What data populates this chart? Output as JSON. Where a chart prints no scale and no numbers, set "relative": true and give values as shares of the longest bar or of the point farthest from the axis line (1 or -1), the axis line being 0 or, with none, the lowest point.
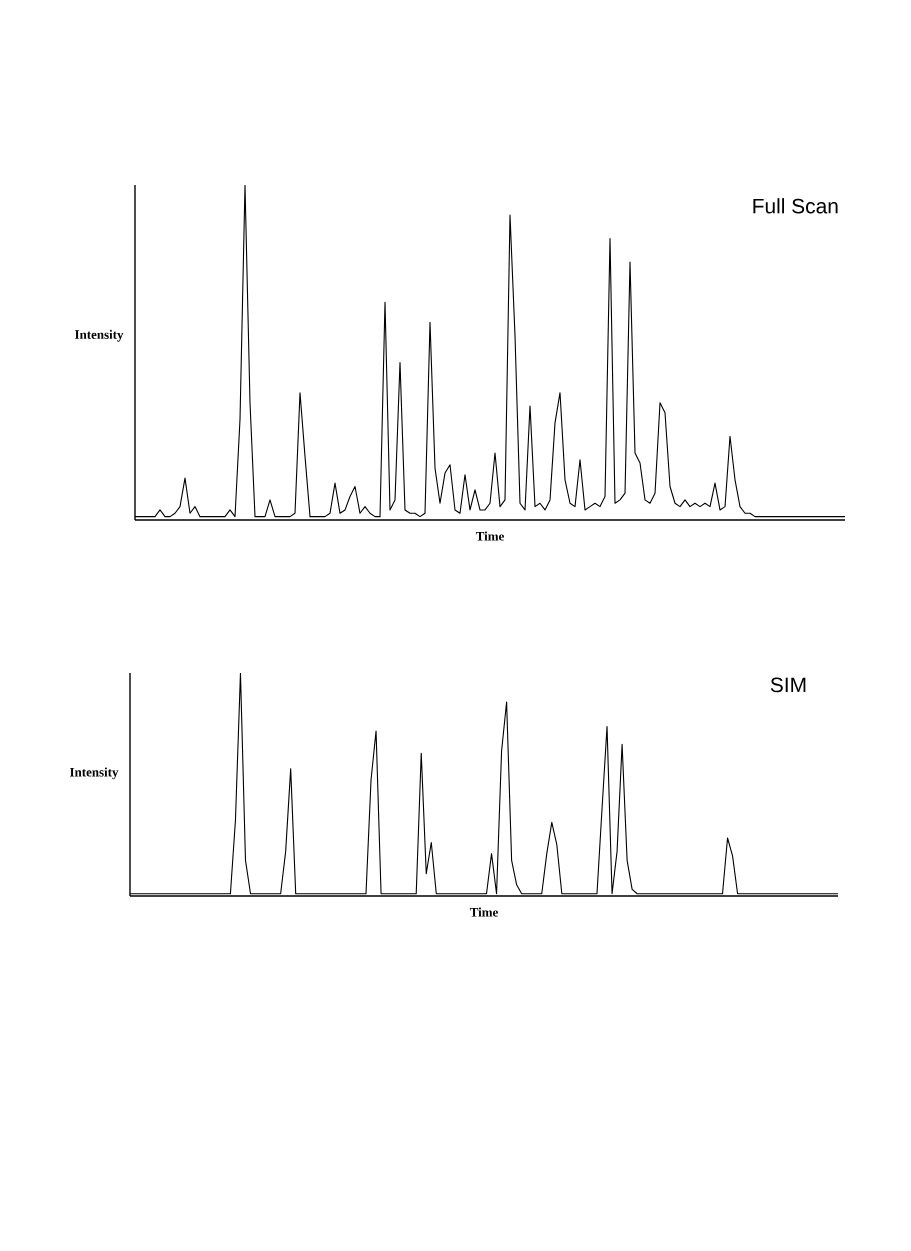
{
  "chart_data": [
    {
      "type": "line",
      "title": "Full Scan",
      "xlabel": "Time",
      "ylabel": "Intensity",
      "relative": true,
      "marker": "none",
      "line_style": "solid",
      "categories": [
        null,
        null,
        null,
        null,
        null,
        null,
        null,
        null,
        null,
        null,
        null,
        null,
        null,
        null,
        null,
        null,
        null,
        null,
        null,
        null,
        null,
        null,
        null,
        null,
        null,
        null,
        null,
        null,
        null,
        null,
        null,
        null,
        null,
        null,
        null,
        null,
        null,
        null,
        null,
        null,
        null,
        null,
        null,
        null,
        null,
        null,
        null,
        null,
        null,
        null,
        null,
        null,
        null,
        null,
        null,
        null,
        null,
        null,
        null,
        null,
        null,
        null,
        null,
        null,
        null,
        null,
        null,
        null,
        null,
        null,
        null,
        null,
        null,
        null,
        null,
        null,
        null,
        null,
        null,
        null,
        null,
        null,
        null,
        null,
        null,
        null,
        null,
        null,
        null,
        null,
        null,
        null,
        null,
        null,
        null,
        null,
        null,
        null,
        null,
        null,
        null,
        null,
        null,
        null,
        null,
        null,
        null,
        null,
        null,
        null,
        null,
        null,
        null,
        null,
        null,
        null,
        null,
        null,
        null,
        null,
        null,
        null,
        null,
        null,
        null,
        null,
        null,
        null,
        null,
        null,
        null,
        null,
        null,
        null,
        null,
        null,
        null,
        null,
        null,
        null,
        null,
        null,
        null
      ],
      "series": [
        {
          "color": "#000000",
          "values": [
            0.01,
            0.01,
            0.01,
            0.01,
            0.01,
            0.03,
            0.01,
            0.01,
            0.02,
            0.04,
            0.125,
            0.02,
            0.04,
            0.01,
            0.01,
            0.01,
            0.01,
            0.01,
            0.01,
            0.03,
            0.01,
            0.3,
            1.0,
            0.35,
            0.01,
            0.01,
            0.01,
            0.06,
            0.01,
            0.01,
            0.01,
            0.01,
            0.02,
            0.38,
            0.19,
            0.01,
            0.01,
            0.01,
            0.01,
            0.02,
            0.11,
            0.02,
            0.03,
            0.07,
            0.1,
            0.02,
            0.04,
            0.02,
            0.01,
            0.01,
            0.65,
            0.03,
            0.06,
            0.47,
            0.03,
            0.02,
            0.02,
            0.01,
            0.02,
            0.59,
            0.155,
            0.05,
            0.14,
            0.165,
            0.03,
            0.02,
            0.135,
            0.03,
            0.09,
            0.03,
            0.03,
            0.05,
            0.2,
            0.04,
            0.06,
            0.91,
            0.55,
            0.05,
            0.03,
            0.34,
            0.04,
            0.05,
            0.03,
            0.06,
            0.29,
            0.38,
            0.12,
            0.05,
            0.04,
            0.18,
            0.03,
            0.04,
            0.05,
            0.04,
            0.07,
            0.84,
            0.05,
            0.06,
            0.08,
            0.77,
            0.2,
            0.17,
            0.06,
            0.05,
            0.08,
            0.35,
            0.32,
            0.1,
            0.05,
            0.04,
            0.06,
            0.04,
            0.05,
            0.04,
            0.05,
            0.04,
            0.11,
            0.03,
            0.04,
            0.25,
            0.12,
            0.04,
            0.02,
            0.02,
            0.01,
            0.01,
            0.01,
            0.01,
            0.01,
            0.01,
            0.01,
            0.01,
            0.01,
            0.01,
            0.01,
            0.01,
            0.01,
            0.01,
            0.01,
            0.01,
            0.01,
            0.01,
            0.01
          ]
        }
      ]
    },
    {
      "type": "line",
      "title": "SIM",
      "xlabel": "Time",
      "ylabel": "Intensity",
      "relative": true,
      "marker": "none",
      "line_style": "solid",
      "categories": [
        null,
        null,
        null,
        null,
        null,
        null,
        null,
        null,
        null,
        null,
        null,
        null,
        null,
        null,
        null,
        null,
        null,
        null,
        null,
        null,
        null,
        null,
        null,
        null,
        null,
        null,
        null,
        null,
        null,
        null,
        null,
        null,
        null,
        null,
        null,
        null,
        null,
        null,
        null,
        null,
        null,
        null,
        null,
        null,
        null,
        null,
        null,
        null,
        null,
        null,
        null,
        null,
        null,
        null,
        null,
        null,
        null,
        null,
        null,
        null,
        null,
        null,
        null,
        null,
        null,
        null,
        null,
        null,
        null,
        null,
        null,
        null,
        null,
        null,
        null,
        null,
        null,
        null,
        null,
        null,
        null,
        null,
        null,
        null,
        null,
        null,
        null,
        null,
        null,
        null,
        null,
        null,
        null,
        null,
        null,
        null,
        null,
        null,
        null,
        null,
        null,
        null,
        null,
        null,
        null,
        null,
        null,
        null,
        null,
        null,
        null,
        null,
        null,
        null,
        null,
        null,
        null,
        null,
        null,
        null,
        null,
        null,
        null,
        null,
        null,
        null,
        null,
        null,
        null,
        null,
        null,
        null,
        null,
        null,
        null,
        null,
        null,
        null,
        null,
        null,
        null,
        null
      ],
      "series": [
        {
          "color": "#000000",
          "values": [
            0.01,
            0.01,
            0.01,
            0.01,
            0.01,
            0.01,
            0.01,
            0.01,
            0.01,
            0.01,
            0.01,
            0.01,
            0.01,
            0.01,
            0.01,
            0.01,
            0.01,
            0.01,
            0.01,
            0.01,
            0.01,
            0.34,
            1.0,
            0.16,
            0.01,
            0.01,
            0.01,
            0.01,
            0.01,
            0.01,
            0.01,
            0.2,
            0.57,
            0.01,
            0.01,
            0.01,
            0.01,
            0.01,
            0.01,
            0.01,
            0.01,
            0.01,
            0.01,
            0.01,
            0.01,
            0.01,
            0.01,
            0.01,
            0.52,
            0.74,
            0.01,
            0.01,
            0.01,
            0.01,
            0.01,
            0.01,
            0.01,
            0.01,
            0.64,
            0.1,
            0.24,
            0.01,
            0.01,
            0.01,
            0.01,
            0.01,
            0.01,
            0.01,
            0.01,
            0.01,
            0.01,
            0.01,
            0.19,
            0.01,
            0.65,
            0.87,
            0.16,
            0.05,
            0.01,
            0.01,
            0.01,
            0.01,
            0.01,
            0.19,
            0.33,
            0.23,
            0.01,
            0.01,
            0.01,
            0.01,
            0.01,
            0.01,
            0.01,
            0.01,
            0.39,
            0.76,
            0.01,
            0.2,
            0.68,
            0.16,
            0.03,
            0.01,
            0.01,
            0.01,
            0.01,
            0.01,
            0.01,
            0.01,
            0.01,
            0.01,
            0.01,
            0.01,
            0.01,
            0.01,
            0.01,
            0.01,
            0.01,
            0.01,
            0.01,
            0.26,
            0.18,
            0.01,
            0.01,
            0.01,
            0.01,
            0.01,
            0.01,
            0.01,
            0.01,
            0.01,
            0.01,
            0.01,
            0.01,
            0.01,
            0.01,
            0.01,
            0.01,
            0.01,
            0.01,
            0.01,
            0.01,
            0.01
          ]
        }
      ]
    }
  ]
}
